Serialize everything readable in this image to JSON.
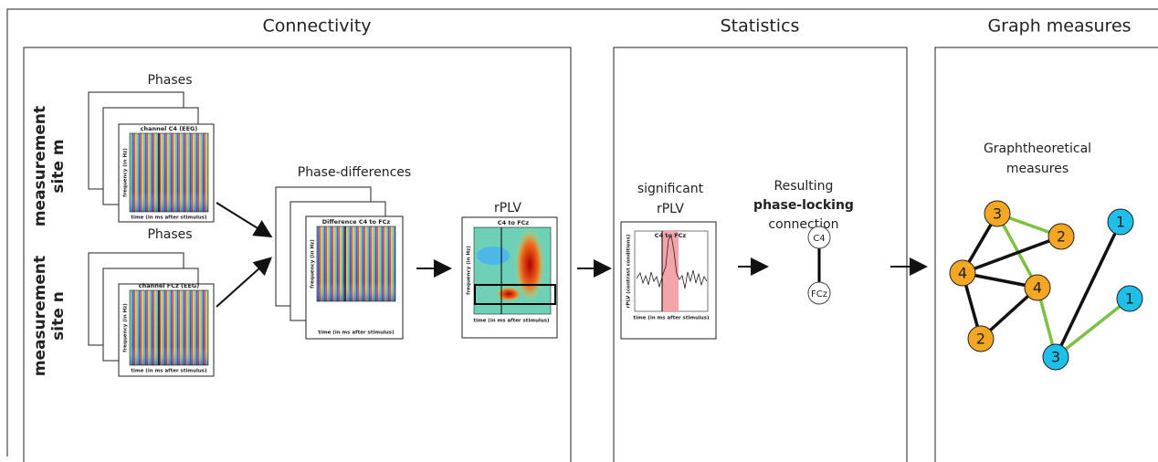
{
  "sections": {
    "connectivity": "Connectivity",
    "statistics": "Statistics",
    "graph": "Graph measures"
  },
  "sites": [
    {
      "label": [
        "measurement",
        "site m"
      ],
      "phases_title": "Phases",
      "panel_title": "channel C4 (EEG)",
      "y_label": "frequency (in Hz)",
      "x_label": "time (in ms after stimulus)"
    },
    {
      "label": [
        "measurement",
        "site n"
      ],
      "phases_title": "Phases",
      "panel_title": "channel FCz (EEG)",
      "y_label": "frequency (in Hz)",
      "x_label": "time (in ms after stimulus)"
    }
  ],
  "phase_differences": {
    "title": "Phase-differences",
    "panel_title": "Difference C4 to FCz",
    "y_label": "frequency (in Hz)",
    "x_label": "time (in ms after stimulus)"
  },
  "rplv": {
    "title": "rPLV",
    "panel_title": "C4 to FCz",
    "y_label": "frequency (in Hz)",
    "x_label": "time (in ms after stimulus)"
  },
  "significant": {
    "title": [
      "significant",
      "rPLV"
    ],
    "panel_title": "C4 to FCz",
    "y_label": "rPLV (contrast conditions)",
    "x_label": "time (in ms after stimulus)"
  },
  "connection": {
    "title": [
      "Resulting",
      "phase-locking",
      "connection"
    ],
    "nodes": [
      "C4",
      "FCz"
    ]
  },
  "graph": {
    "title": [
      "Graphtheoretical",
      "measures"
    ],
    "nodes": [
      "3",
      "2",
      "4",
      "4",
      "2",
      "1",
      "1",
      "3"
    ]
  }
}
